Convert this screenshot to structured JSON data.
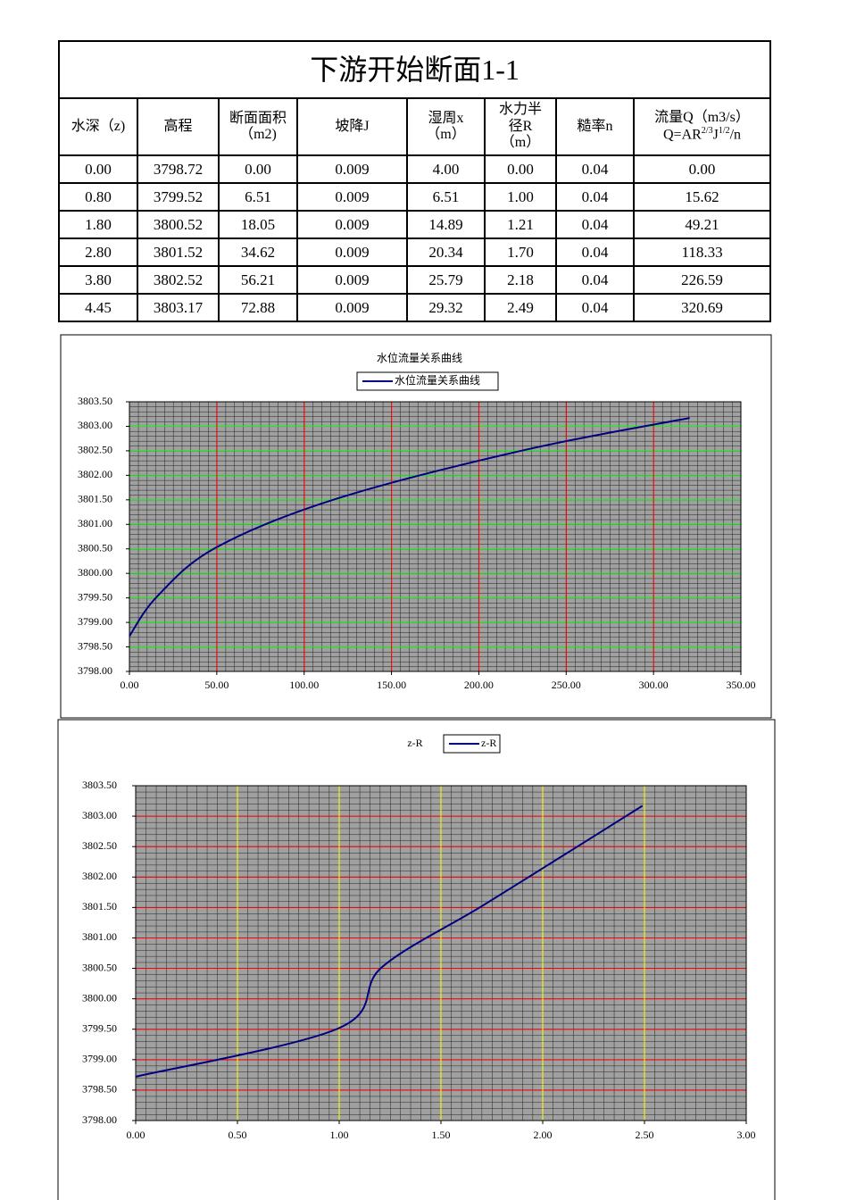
{
  "table": {
    "title": "下游开始断面1-1",
    "headers": [
      [
        "水深（z)"
      ],
      [
        "高程"
      ],
      [
        "断面面积",
        "（m2)"
      ],
      [
        "坡降J"
      ],
      [
        "湿周x",
        "（m）"
      ],
      [
        "水力半",
        "径R",
        "（m）"
      ],
      [
        "糙率n"
      ],
      [
        "流量Q（m3/s）",
        "Q=AR",
        "2/3",
        "J",
        "1/2",
        "/n"
      ]
    ],
    "rows": [
      [
        "0.00",
        "3798.72",
        "0.00",
        "0.009",
        "4.00",
        "0.00",
        "0.04",
        "0.00"
      ],
      [
        "0.80",
        "3799.52",
        "6.51",
        "0.009",
        "6.51",
        "1.00",
        "0.04",
        "15.62"
      ],
      [
        "1.80",
        "3800.52",
        "18.05",
        "0.009",
        "14.89",
        "1.21",
        "0.04",
        "49.21"
      ],
      [
        "2.80",
        "3801.52",
        "34.62",
        "0.009",
        "20.34",
        "1.70",
        "0.04",
        "118.33"
      ],
      [
        "3.80",
        "3802.52",
        "56.21",
        "0.009",
        "25.79",
        "2.18",
        "0.04",
        "226.59"
      ],
      [
        "4.45",
        "3803.17",
        "72.88",
        "0.009",
        "29.32",
        "2.49",
        "0.04",
        "320.69"
      ]
    ]
  },
  "chart_data": [
    {
      "type": "line",
      "title": "水位流量关系曲线",
      "legend": "top",
      "x": [
        0,
        15.62,
        49.21,
        118.33,
        226.59,
        320.69
      ],
      "series": [
        {
          "name": "水位流量关系曲线",
          "color": "#000080",
          "values": [
            3798.72,
            3799.52,
            3800.52,
            3801.52,
            3802.52,
            3803.17
          ]
        }
      ],
      "xlim": [
        0,
        350
      ],
      "xticks": [
        {
          "value": 0,
          "label": "0.00"
        },
        {
          "value": 50,
          "label": "50.00"
        },
        {
          "value": 100,
          "label": "100.00"
        },
        {
          "value": 150,
          "label": "150.00"
        },
        {
          "value": 200,
          "label": "200.00"
        },
        {
          "value": 250,
          "label": "250.00"
        },
        {
          "value": 300,
          "label": "300.00"
        },
        {
          "value": 350,
          "label": "350.00"
        }
      ],
      "ylim": [
        3798,
        3803.5
      ],
      "yticks": [
        {
          "value": 3798,
          "label": "3798.00"
        },
        {
          "value": 3798.5,
          "label": "3798.50"
        },
        {
          "value": 3799,
          "label": "3799.00"
        },
        {
          "value": 3799.5,
          "label": "3799.50"
        },
        {
          "value": 3800,
          "label": "3800.00"
        },
        {
          "value": 3800.5,
          "label": "3800.50"
        },
        {
          "value": 3801,
          "label": "3801.00"
        },
        {
          "value": 3801.5,
          "label": "3801.50"
        },
        {
          "value": 3802,
          "label": "3802.00"
        },
        {
          "value": 3802.5,
          "label": "3802.50"
        },
        {
          "value": 3803,
          "label": "3803.00"
        },
        {
          "value": 3803.5,
          "label": "3803.50"
        }
      ],
      "grid": true,
      "xgrid_color": "#ff0000",
      "ygrid_color": "#00ff00"
    },
    {
      "type": "line",
      "title": "z-R",
      "legend": "top",
      "x": [
        0,
        1.0,
        1.21,
        1.7,
        2.18,
        2.49
      ],
      "series": [
        {
          "name": "z-R",
          "color": "#000080",
          "values": [
            3798.72,
            3799.52,
            3800.52,
            3801.52,
            3802.52,
            3803.17
          ]
        }
      ],
      "xlim": [
        0,
        3
      ],
      "xticks": [
        {
          "value": 0,
          "label": "0.00"
        },
        {
          "value": 0.5,
          "label": "0.50"
        },
        {
          "value": 1,
          "label": "1.00"
        },
        {
          "value": 1.5,
          "label": "1.50"
        },
        {
          "value": 2,
          "label": "2.00"
        },
        {
          "value": 2.5,
          "label": "2.50"
        },
        {
          "value": 3,
          "label": "3.00"
        }
      ],
      "ylim": [
        3798,
        3803.5
      ],
      "yticks": [
        {
          "value": 3798,
          "label": "3798.00"
        },
        {
          "value": 3798.5,
          "label": "3798.50"
        },
        {
          "value": 3799,
          "label": "3799.00"
        },
        {
          "value": 3799.5,
          "label": "3799.50"
        },
        {
          "value": 3800,
          "label": "3800.00"
        },
        {
          "value": 3800.5,
          "label": "3800.50"
        },
        {
          "value": 3801,
          "label": "3801.00"
        },
        {
          "value": 3801.5,
          "label": "3801.50"
        },
        {
          "value": 3802,
          "label": "3802.00"
        },
        {
          "value": 3802.5,
          "label": "3802.50"
        },
        {
          "value": 3803,
          "label": "3803.00"
        },
        {
          "value": 3803.5,
          "label": "3803.50"
        }
      ],
      "grid": true,
      "xgrid_color": "#ffff00",
      "ygrid_color": "#ff0000"
    }
  ]
}
